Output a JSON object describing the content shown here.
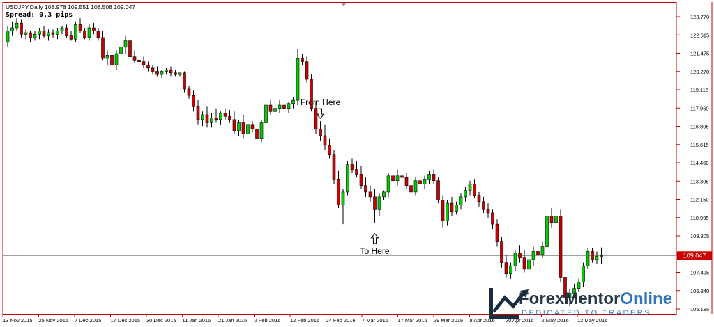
{
  "chart_data": {
    "type": "candlestick",
    "symbol_line": "USDJPY,Daily  108.978 109.551 108.508 109.047",
    "spread_label": "Spread: 0.3 pips",
    "ylim": [
      105.6,
      124.5
    ],
    "y_ticks": [
      "123.770",
      "122.615",
      "121.475",
      "120.270",
      "119.115",
      "117.960",
      "116.805",
      "115.615",
      "114.460",
      "113.305",
      "112.150",
      "110.995",
      "109.805",
      "108.650",
      "107.495",
      "106.340",
      "105.185"
    ],
    "x_ticks": [
      "13 Nov 2015",
      "25 Nov 2015",
      "7 Dec 2015",
      "17 Dec 2015",
      "30 Dec 2015",
      "11 Jan 2016",
      "21 Jan 2016",
      "2 Feb 2016",
      "12 Feb 2016",
      "24 Feb 2016",
      "7 Mar 2016",
      "17 Mar 2016",
      "29 Mar 2016",
      "8 Apr 2016",
      "20 Apr 2016",
      "2 May 2016",
      "12 May 2016"
    ],
    "current_price": "109.047",
    "current_price_value": 109.047,
    "colors": {
      "bull": "#00d000",
      "bear": "#cc0000",
      "wick": "#000000",
      "price_line": "#808080",
      "price_tag": "#cc0000",
      "axis": "#cc0000"
    },
    "annotations": [
      {
        "text": "From Here",
        "arrow": "down",
        "candle_index": 69
      },
      {
        "text": "To Here",
        "arrow": "up",
        "candle_index": 81
      }
    ],
    "candles": [
      [
        122.3,
        123.3,
        122.0,
        123.0
      ],
      [
        123.0,
        123.6,
        122.7,
        123.2
      ],
      [
        123.2,
        123.8,
        123.0,
        123.5
      ],
      [
        123.5,
        123.7,
        122.6,
        122.8
      ],
      [
        122.8,
        123.1,
        122.5,
        122.9
      ],
      [
        122.9,
        123.0,
        122.3,
        122.6
      ],
      [
        122.6,
        123.0,
        122.4,
        122.8
      ],
      [
        122.8,
        123.2,
        122.5,
        123.0
      ],
      [
        123.0,
        123.3,
        122.6,
        122.7
      ],
      [
        122.7,
        123.1,
        122.4,
        122.9
      ],
      [
        122.9,
        123.1,
        122.6,
        122.8
      ],
      [
        122.8,
        123.2,
        122.5,
        123.0
      ],
      [
        123.0,
        123.3,
        122.8,
        123.2
      ],
      [
        123.2,
        123.4,
        122.6,
        122.7
      ],
      [
        122.7,
        123.0,
        122.4,
        122.5
      ],
      [
        122.5,
        123.6,
        122.3,
        123.4
      ],
      [
        123.4,
        123.8,
        122.9,
        123.0
      ],
      [
        123.0,
        123.2,
        122.5,
        122.6
      ],
      [
        122.6,
        123.4,
        122.4,
        123.2
      ],
      [
        123.2,
        123.5,
        122.8,
        123.0
      ],
      [
        123.0,
        123.2,
        122.4,
        122.6
      ],
      [
        122.6,
        123.0,
        121.2,
        121.3
      ],
      [
        121.3,
        121.8,
        120.9,
        121.5
      ],
      [
        121.5,
        121.9,
        120.5,
        120.9
      ],
      [
        120.9,
        121.8,
        120.6,
        121.6
      ],
      [
        121.6,
        122.2,
        121.3,
        122.0
      ],
      [
        122.0,
        122.7,
        121.6,
        122.4
      ],
      [
        122.4,
        123.6,
        121.2,
        121.4
      ],
      [
        121.4,
        121.8,
        121.0,
        121.2
      ],
      [
        121.2,
        121.5,
        120.9,
        121.1
      ],
      [
        121.1,
        121.4,
        120.7,
        120.9
      ],
      [
        120.9,
        121.1,
        120.5,
        120.7
      ],
      [
        120.7,
        120.9,
        120.3,
        120.5
      ],
      [
        120.5,
        120.8,
        120.2,
        120.3
      ],
      [
        120.3,
        120.6,
        120.1,
        120.5
      ],
      [
        120.5,
        120.7,
        120.3,
        120.6
      ],
      [
        120.6,
        120.8,
        120.2,
        120.4
      ],
      [
        120.4,
        120.6,
        120.2,
        120.3
      ],
      [
        120.3,
        120.4,
        120.2,
        120.4
      ],
      [
        120.4,
        120.5,
        119.2,
        119.4
      ],
      [
        119.4,
        119.6,
        118.8,
        119.0
      ],
      [
        119.0,
        119.3,
        118.0,
        118.3
      ],
      [
        118.3,
        118.7,
        117.2,
        117.5
      ],
      [
        117.5,
        118.0,
        117.1,
        117.8
      ],
      [
        117.8,
        118.3,
        117.0,
        117.3
      ],
      [
        117.3,
        117.9,
        117.0,
        117.6
      ],
      [
        117.6,
        118.2,
        117.3,
        117.5
      ],
      [
        117.5,
        118.0,
        117.2,
        117.9
      ],
      [
        117.9,
        118.2,
        117.5,
        117.7
      ],
      [
        117.7,
        118.1,
        117.3,
        117.5
      ],
      [
        117.5,
        118.0,
        116.6,
        116.8
      ],
      [
        116.8,
        117.5,
        116.5,
        117.3
      ],
      [
        117.3,
        117.8,
        116.3,
        116.6
      ],
      [
        116.6,
        117.4,
        116.3,
        117.2
      ],
      [
        117.2,
        117.4,
        116.7,
        116.9
      ],
      [
        116.9,
        117.3,
        116.0,
        116.3
      ],
      [
        116.3,
        117.5,
        116.1,
        117.3
      ],
      [
        117.3,
        118.6,
        117.0,
        118.4
      ],
      [
        118.4,
        118.7,
        117.8,
        118.0
      ],
      [
        118.0,
        118.5,
        117.6,
        118.2
      ],
      [
        118.2,
        118.7,
        117.9,
        118.4
      ],
      [
        118.4,
        118.8,
        118.0,
        118.2
      ],
      [
        118.2,
        118.6,
        117.9,
        118.5
      ],
      [
        118.5,
        118.9,
        118.2,
        118.7
      ],
      [
        118.7,
        121.9,
        118.4,
        121.3
      ],
      [
        121.3,
        121.6,
        120.9,
        121.1
      ],
      [
        121.1,
        121.4,
        119.8,
        120.0
      ],
      [
        120.0,
        120.3,
        118.0,
        118.2
      ],
      [
        118.2,
        118.6,
        116.6,
        116.9
      ],
      [
        116.9,
        117.4,
        116.2,
        116.5
      ],
      [
        116.5,
        117.2,
        115.6,
        115.9
      ],
      [
        115.9,
        116.3,
        115.1,
        115.3
      ],
      [
        115.3,
        115.6,
        113.5,
        113.8
      ],
      [
        113.8,
        114.3,
        112.0,
        112.2
      ],
      [
        112.2,
        113.2,
        111.0,
        113.0
      ],
      [
        113.0,
        114.9,
        112.8,
        114.7
      ],
      [
        114.7,
        115.1,
        114.2,
        114.4
      ],
      [
        114.4,
        114.9,
        113.9,
        114.1
      ],
      [
        114.1,
        114.6,
        113.2,
        113.4
      ],
      [
        113.4,
        113.9,
        112.7,
        113.0
      ],
      [
        113.0,
        113.4,
        112.4,
        112.7
      ],
      [
        112.7,
        113.2,
        111.1,
        111.9
      ],
      [
        111.9,
        112.9,
        111.5,
        112.7
      ],
      [
        112.7,
        113.1,
        112.5,
        113.0
      ],
      [
        113.0,
        114.2,
        112.7,
        114.0
      ],
      [
        114.0,
        114.4,
        113.5,
        113.7
      ],
      [
        113.7,
        114.4,
        113.4,
        114.0
      ],
      [
        114.0,
        114.6,
        113.7,
        113.9
      ],
      [
        113.9,
        114.2,
        113.2,
        113.4
      ],
      [
        113.4,
        113.8,
        112.8,
        113.0
      ],
      [
        113.0,
        113.9,
        112.8,
        113.7
      ],
      [
        113.7,
        114.1,
        113.3,
        113.5
      ],
      [
        113.5,
        114.0,
        113.2,
        113.8
      ],
      [
        113.8,
        114.3,
        113.5,
        114.1
      ],
      [
        114.1,
        114.4,
        113.5,
        113.7
      ],
      [
        113.7,
        113.9,
        112.3,
        112.5
      ],
      [
        112.5,
        112.8,
        110.8,
        111.2
      ],
      [
        111.2,
        112.5,
        110.9,
        112.3
      ],
      [
        112.3,
        112.7,
        111.5,
        111.8
      ],
      [
        111.8,
        112.4,
        111.6,
        112.2
      ],
      [
        112.2,
        112.9,
        111.9,
        112.7
      ],
      [
        112.7,
        113.3,
        112.4,
        113.1
      ],
      [
        113.1,
        113.7,
        112.8,
        113.5
      ],
      [
        113.5,
        113.8,
        112.6,
        112.8
      ],
      [
        112.8,
        113.0,
        112.1,
        112.4
      ],
      [
        112.4,
        112.7,
        111.7,
        111.9
      ],
      [
        111.9,
        112.3,
        111.4,
        111.7
      ],
      [
        111.7,
        111.9,
        110.7,
        111.0
      ],
      [
        111.0,
        111.3,
        109.6,
        109.9
      ],
      [
        109.9,
        110.2,
        108.3,
        108.6
      ],
      [
        108.6,
        109.1,
        107.7,
        107.9
      ],
      [
        107.9,
        108.6,
        107.6,
        108.4
      ],
      [
        108.4,
        109.4,
        108.1,
        109.2
      ],
      [
        109.2,
        109.7,
        108.6,
        108.9
      ],
      [
        108.9,
        109.4,
        108.0,
        108.2
      ],
      [
        108.2,
        109.0,
        107.8,
        108.8
      ],
      [
        108.8,
        109.6,
        108.4,
        109.3
      ],
      [
        109.3,
        109.7,
        108.8,
        109.1
      ],
      [
        109.1,
        109.9,
        108.9,
        109.6
      ],
      [
        109.6,
        111.8,
        109.4,
        111.5
      ],
      [
        111.5,
        112.0,
        110.8,
        111.1
      ],
      [
        111.1,
        111.8,
        110.3,
        111.5
      ],
      [
        111.5,
        111.9,
        107.4,
        107.7
      ],
      [
        107.7,
        108.2,
        106.1,
        106.4
      ],
      [
        106.4,
        107.0,
        105.9,
        106.7
      ],
      [
        106.7,
        107.3,
        106.4,
        107.0
      ],
      [
        107.0,
        107.6,
        106.8,
        107.4
      ],
      [
        107.4,
        108.6,
        107.1,
        108.4
      ],
      [
        108.4,
        109.5,
        108.2,
        109.3
      ],
      [
        109.3,
        109.5,
        108.6,
        108.8
      ],
      [
        108.8,
        109.3,
        108.5,
        109.0
      ],
      [
        108.98,
        109.55,
        108.51,
        109.047
      ]
    ]
  }
}
